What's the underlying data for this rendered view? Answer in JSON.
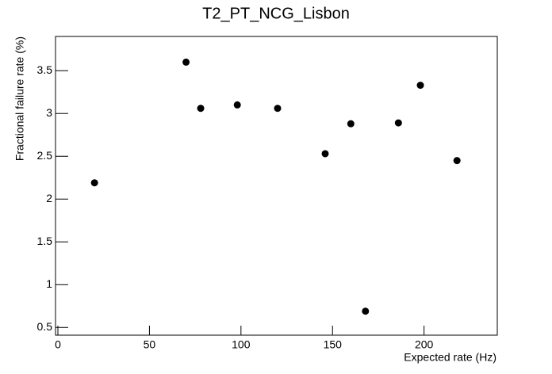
{
  "chart_data": {
    "type": "scatter",
    "title": "T2_PT_NCG_Lisbon",
    "x_label": "Expected rate (Hz)",
    "y_label": "Fractional failure rate (%)",
    "x": [
      20,
      70,
      78,
      98,
      120,
      146,
      160,
      168,
      186,
      198,
      218
    ],
    "values": [
      2.19,
      3.6,
      3.06,
      3.1,
      3.06,
      2.53,
      2.88,
      0.69,
      2.89,
      3.33,
      2.45
    ],
    "color": "#000000",
    "xlim": [
      -1.3,
      240
    ],
    "xticks": [
      0,
      50,
      100,
      150,
      200
    ],
    "ylim": [
      0.41,
      3.9
    ],
    "yticks": [
      0.5,
      {
        "value": 1,
        "label": "1"
      },
      1.5,
      {
        "value": 2,
        "label": "2"
      },
      2.5,
      {
        "value": 3,
        "label": "3"
      },
      3.5
    ]
  }
}
